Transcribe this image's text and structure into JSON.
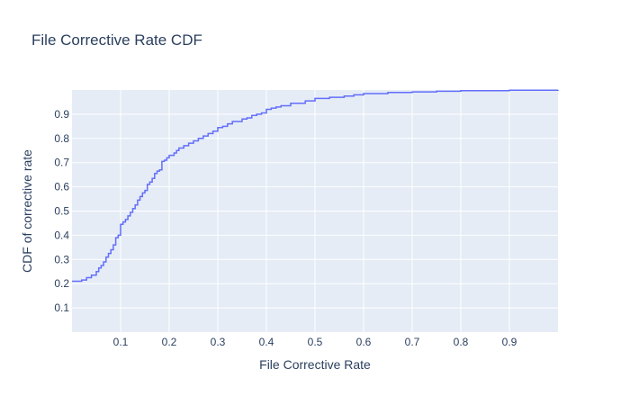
{
  "chart_data": {
    "type": "line",
    "title": "File Corrective Rate CDF",
    "xlabel": "File Corrective Rate",
    "ylabel": "CDF of corrective rate",
    "xlim": [
      0,
      1
    ],
    "ylim": [
      0,
      1
    ],
    "x_ticks": [
      "0.1",
      "0.2",
      "0.3",
      "0.4",
      "0.5",
      "0.6",
      "0.7",
      "0.8",
      "0.9"
    ],
    "y_ticks": [
      "0.1",
      "0.2",
      "0.3",
      "0.4",
      "0.5",
      "0.6",
      "0.7",
      "0.8",
      "0.9"
    ],
    "grid": true,
    "legend": "none",
    "line_shape": "step",
    "colors": {
      "line": "#636efa",
      "plot_background": "#e5ecf6",
      "grid": "#ffffff",
      "text": "#2a3f5f"
    },
    "series": [
      {
        "x": [
          0,
          0.02,
          0.03,
          0.04,
          0.05,
          0.055,
          0.06,
          0.065,
          0.07,
          0.075,
          0.08,
          0.085,
          0.09,
          0.095,
          0.1,
          0.105,
          0.11,
          0.115,
          0.12,
          0.125,
          0.13,
          0.135,
          0.14,
          0.145,
          0.15,
          0.155,
          0.16,
          0.165,
          0.17,
          0.175,
          0.18,
          0.185,
          0.19,
          0.195,
          0.2,
          0.21,
          0.215,
          0.22,
          0.23,
          0.24,
          0.25,
          0.26,
          0.27,
          0.28,
          0.29,
          0.3,
          0.31,
          0.32,
          0.33,
          0.35,
          0.36,
          0.37,
          0.38,
          0.39,
          0.4,
          0.41,
          0.42,
          0.43,
          0.45,
          0.48,
          0.5,
          0.53,
          0.56,
          0.58,
          0.6,
          0.65,
          0.7,
          0.75,
          0.8,
          0.9,
          1.0
        ],
        "y": [
          0.21,
          0.215,
          0.225,
          0.235,
          0.25,
          0.265,
          0.275,
          0.29,
          0.31,
          0.325,
          0.34,
          0.36,
          0.39,
          0.4,
          0.445,
          0.455,
          0.465,
          0.48,
          0.495,
          0.51,
          0.525,
          0.545,
          0.56,
          0.575,
          0.585,
          0.61,
          0.62,
          0.635,
          0.655,
          0.665,
          0.67,
          0.705,
          0.71,
          0.72,
          0.73,
          0.74,
          0.75,
          0.76,
          0.77,
          0.78,
          0.79,
          0.8,
          0.81,
          0.82,
          0.83,
          0.845,
          0.85,
          0.86,
          0.87,
          0.88,
          0.885,
          0.895,
          0.9,
          0.905,
          0.92,
          0.925,
          0.93,
          0.935,
          0.945,
          0.955,
          0.965,
          0.97,
          0.975,
          0.98,
          0.985,
          0.99,
          0.992,
          0.995,
          0.997,
          0.999,
          1.0
        ]
      }
    ]
  }
}
